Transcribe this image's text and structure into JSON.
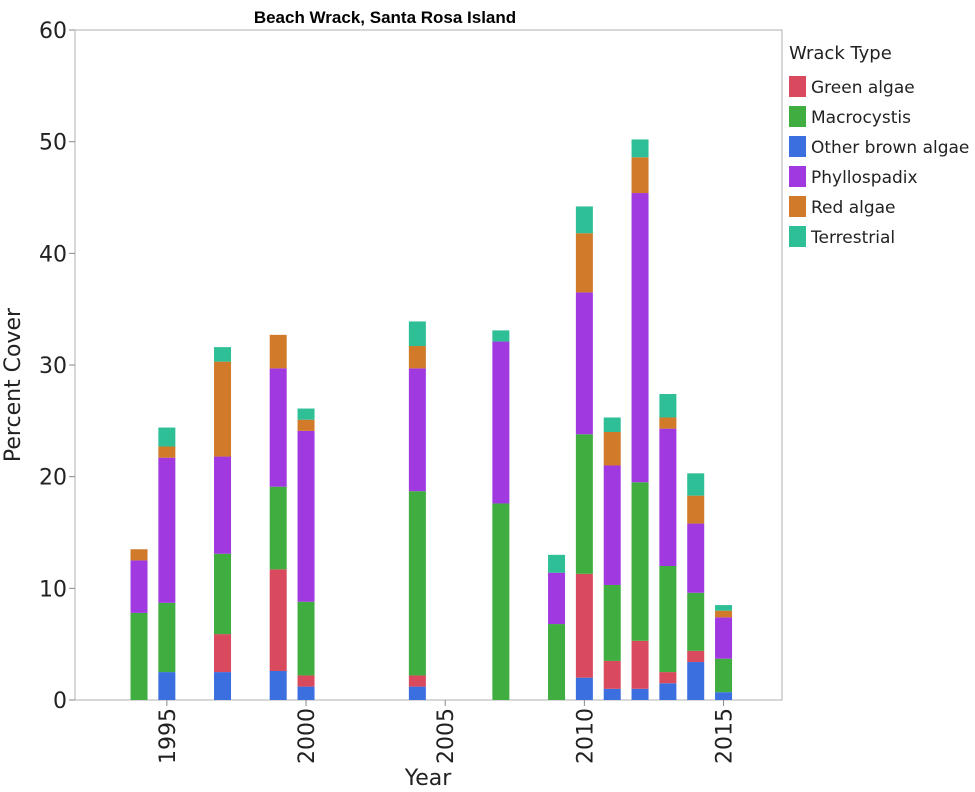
{
  "chart_data": {
    "type": "bar",
    "stacked": true,
    "title": "Beach Wrack, Santa Rosa Island",
    "xlabel": "Year",
    "ylabel": "Percent Cover",
    "ylim": [
      0,
      60
    ],
    "y_ticks": [
      0,
      10,
      20,
      30,
      40,
      50,
      60
    ],
    "xlim": [
      1991.7,
      2017.1
    ],
    "x_ticks": [
      1995,
      2000,
      2005,
      2010,
      2015
    ],
    "grid": false,
    "legend_title": "Wrack Type",
    "legend_position": "right",
    "x": [
      1994,
      1995,
      1997,
      1999,
      2000,
      2004,
      2007,
      2009,
      2010,
      2011,
      2012,
      2013,
      2014,
      2015
    ],
    "series": [
      {
        "name": "Other brown algae",
        "color": "#3b6fe0",
        "values": [
          0,
          2.5,
          2.5,
          2.6,
          1.2,
          1.2,
          0,
          0,
          2.0,
          1.0,
          1.0,
          1.5,
          3.4,
          0.7
        ]
      },
      {
        "name": "Green algae",
        "color": "#d94a5e",
        "values": [
          0,
          0,
          3.4,
          9.1,
          1.0,
          1.0,
          0,
          0,
          9.3,
          2.5,
          4.3,
          1.0,
          1.0,
          0
        ]
      },
      {
        "name": "Macrocystis",
        "color": "#3fad3f",
        "values": [
          7.8,
          6.2,
          7.2,
          7.4,
          6.6,
          16.5,
          17.6,
          6.8,
          12.5,
          6.8,
          14.2,
          9.5,
          5.2,
          3.0
        ]
      },
      {
        "name": "Phyllospadix",
        "color": "#a03ae0",
        "values": [
          4.7,
          13.0,
          8.7,
          10.6,
          15.3,
          11.0,
          14.5,
          4.6,
          12.7,
          10.7,
          25.9,
          12.3,
          6.2,
          3.7
        ]
      },
      {
        "name": "Red algae",
        "color": "#d07a2a",
        "values": [
          1.0,
          1.0,
          8.5,
          3.0,
          1.0,
          2.0,
          0,
          0,
          5.3,
          3.0,
          3.2,
          1.0,
          2.5,
          0.6
        ]
      },
      {
        "name": "Terrestrial",
        "color": "#2ebf96",
        "values": [
          0,
          1.7,
          1.3,
          0,
          1.0,
          2.2,
          1.0,
          1.6,
          2.4,
          1.3,
          1.6,
          2.1,
          2.0,
          0.5
        ]
      }
    ],
    "legend_order": [
      "Green algae",
      "Macrocystis",
      "Other brown algae",
      "Phyllospadix",
      "Red algae",
      "Terrestrial"
    ]
  }
}
